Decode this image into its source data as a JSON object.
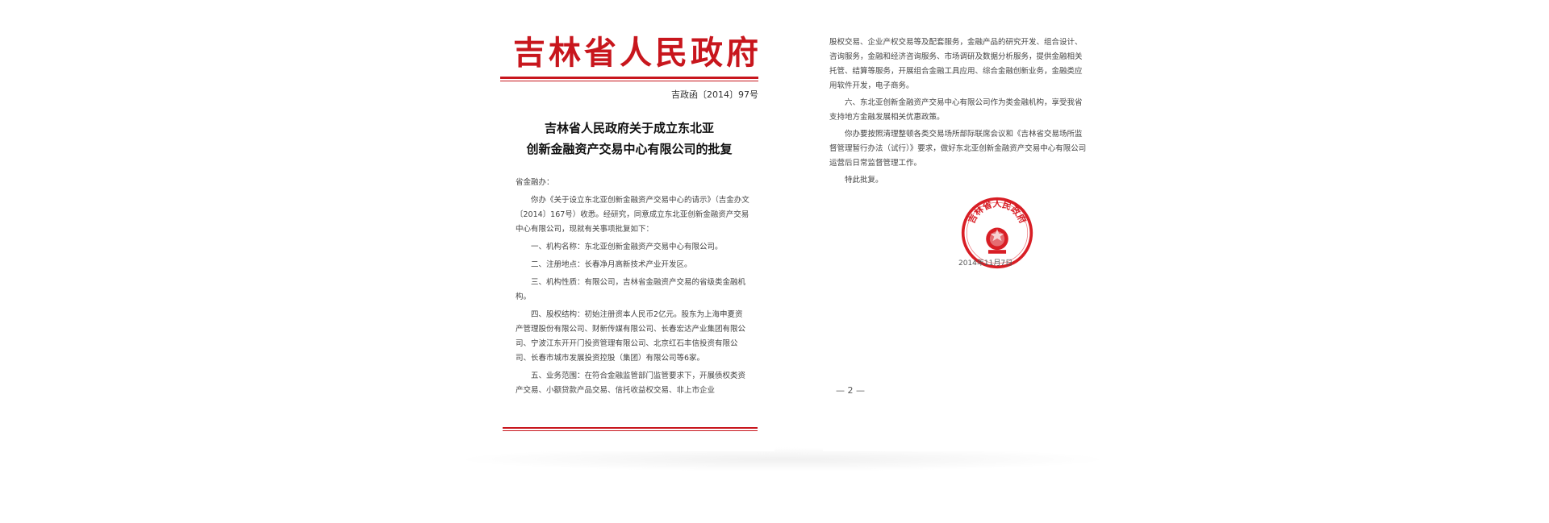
{
  "colors": {
    "accent_red": "#c8161d"
  },
  "left_page": {
    "header": "吉林省人民政府",
    "doc_number": "吉政函〔2014〕97号",
    "title_line1": "吉林省人民政府关于成立东北亚",
    "title_line2": "创新金融资产交易中心有限公司的批复",
    "paragraphs": [
      "省金融办：",
      "你办《关于设立东北亚创新金融资产交易中心的请示》（吉金办文〔2014〕167号）收悉。经研究，同意成立东北亚创新金融资产交易中心有限公司，现就有关事项批复如下：",
      "一、机构名称：东北亚创新金融资产交易中心有限公司。",
      "二、注册地点：长春净月高新技术产业开发区。",
      "三、机构性质：有限公司，吉林省金融资产交易的省级类金融机构。",
      "四、股权结构：初始注册资本人民币2亿元。股东为上海申夏资产管理股份有限公司、财新传媒有限公司、长春宏达产业集团有限公司、宁波江东开开门投资管理有限公司、北京红石丰信投资有限公司、长春市城市发展投资控股（集团）有限公司等6家。",
      "五、业务范围：在符合金融监管部门监管要求下，开展债权类资产交易、小额贷款产品交易、信托收益权交易、非上市企业"
    ]
  },
  "right_page": {
    "paragraphs": [
      "股权交易、企业产权交易等及配套服务，金融产品的研究开发、组合设计、咨询服务，金融和经济咨询服务、市场调研及数据分析服务，提供金融相关托管、结算等服务，开展组合金融工具应用、综合金融创新业务，金融类应用软件开发，电子商务。",
      "六、东北亚创新金融资产交易中心有限公司作为类金融机构，享受我省支持地方金融发展相关优惠政策。",
      "你办要按照清理整顿各类交易场所部际联席会议和《吉林省交易场所监督管理暂行办法（试行）》要求，做好东北亚创新金融资产交易中心有限公司运营后日常监督管理工作。",
      "特此批复。"
    ],
    "seal_text": "吉林省人民政府",
    "date": "2014年11月7日",
    "page_number": "— 2 —"
  }
}
